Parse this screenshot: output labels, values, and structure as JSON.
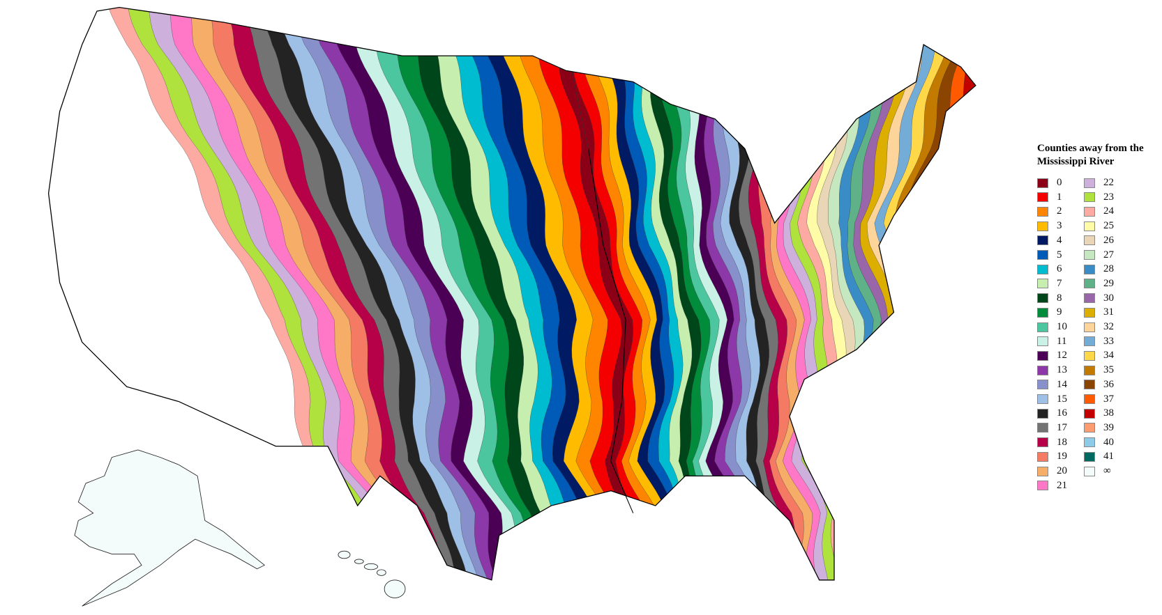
{
  "legend": {
    "title_line1": "Counties away from the",
    "title_line2": "Mississippi River",
    "items": [
      {
        "label": "0",
        "color": "#8b0017"
      },
      {
        "label": "1",
        "color": "#f40000"
      },
      {
        "label": "2",
        "color": "#ff8500"
      },
      {
        "label": "3",
        "color": "#ffbb00"
      },
      {
        "label": "4",
        "color": "#001a63"
      },
      {
        "label": "5",
        "color": "#005bb8"
      },
      {
        "label": "6",
        "color": "#00bcd1"
      },
      {
        "label": "7",
        "color": "#c6eeae"
      },
      {
        "label": "8",
        "color": "#00461b"
      },
      {
        "label": "9",
        "color": "#008c3a"
      },
      {
        "label": "10",
        "color": "#4cc69f"
      },
      {
        "label": "11",
        "color": "#c9f1e6"
      },
      {
        "label": "12",
        "color": "#4b0056"
      },
      {
        "label": "13",
        "color": "#8d38a8"
      },
      {
        "label": "14",
        "color": "#8890cc"
      },
      {
        "label": "15",
        "color": "#9ebfe6"
      },
      {
        "label": "16",
        "color": "#232323"
      },
      {
        "label": "17",
        "color": "#737373"
      },
      {
        "label": "18",
        "color": "#b60048"
      },
      {
        "label": "19",
        "color": "#f47a63"
      },
      {
        "label": "20",
        "color": "#f6ad68"
      },
      {
        "label": "21",
        "color": "#ff78c8"
      },
      {
        "label": "22",
        "color": "#cdb0dc"
      },
      {
        "label": "23",
        "color": "#afe23c"
      },
      {
        "label": "24",
        "color": "#fdaaa3"
      },
      {
        "label": "25",
        "color": "#fffba6"
      },
      {
        "label": "26",
        "color": "#e8d6b6"
      },
      {
        "label": "27",
        "color": "#c6e8c0"
      },
      {
        "label": "28",
        "color": "#3a8cc6"
      },
      {
        "label": "29",
        "color": "#5fb287"
      },
      {
        "label": "30",
        "color": "#9966aa"
      },
      {
        "label": "31",
        "color": "#dcae00"
      },
      {
        "label": "32",
        "color": "#fdd49a"
      },
      {
        "label": "33",
        "color": "#74acd8"
      },
      {
        "label": "34",
        "color": "#ffd84a"
      },
      {
        "label": "35",
        "color": "#c37a00"
      },
      {
        "label": "36",
        "color": "#8b4500"
      },
      {
        "label": "37",
        "color": "#ff5a00"
      },
      {
        "label": "38",
        "color": "#c20000"
      },
      {
        "label": "39",
        "color": "#fc9c70"
      },
      {
        "label": "40",
        "color": "#8ecbe8"
      },
      {
        "label": "41",
        "color": "#006a60"
      },
      {
        "label": "∞",
        "color": "#f4fbfb"
      }
    ]
  }
}
